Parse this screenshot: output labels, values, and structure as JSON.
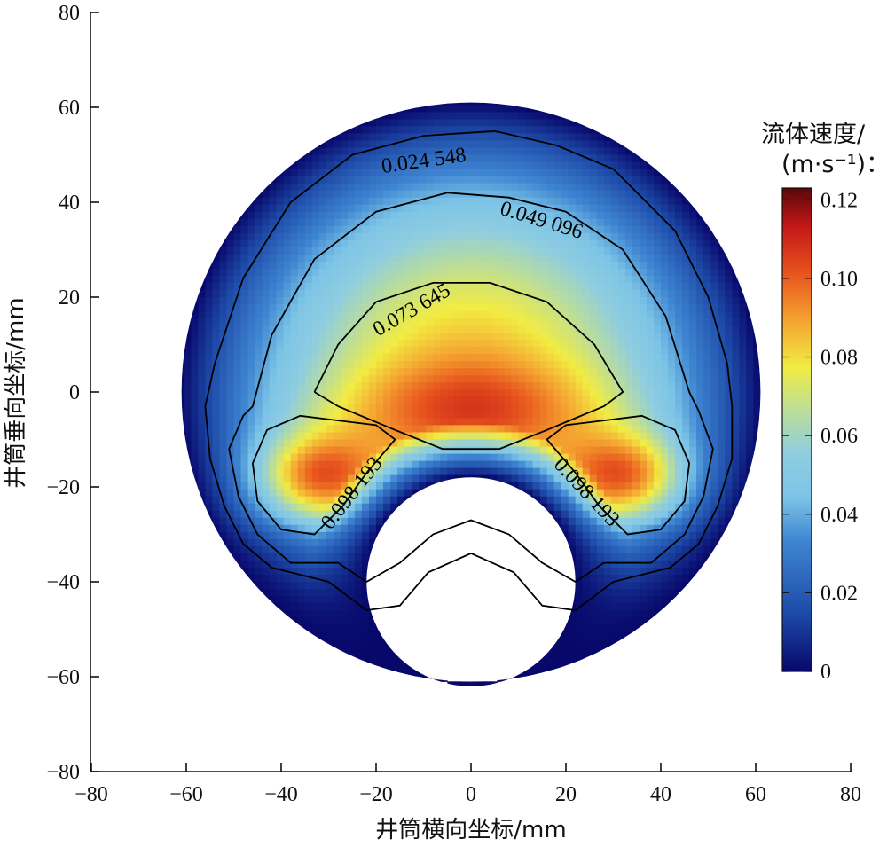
{
  "chart_data": {
    "type": "heatmap",
    "title": "",
    "xlabel": "井筒横向坐标/mm",
    "ylabel": "井筒垂向坐标/mm",
    "xlim": [
      -80,
      80
    ],
    "ylim": [
      -80,
      80
    ],
    "x_ticks": [
      -80,
      -60,
      -40,
      -20,
      0,
      20,
      40,
      60,
      80
    ],
    "y_ticks": [
      -80,
      -60,
      -40,
      -20,
      0,
      20,
      40,
      60,
      80
    ],
    "x_tick_labels": [
      "−80",
      "−60",
      "−40",
      "−20",
      "0",
      "20",
      "40",
      "60",
      "80"
    ],
    "y_tick_labels": [
      "−80",
      "−60",
      "−40",
      "−20",
      "0",
      "20",
      "40",
      "60",
      "80"
    ],
    "wellbore": {
      "center": [
        0,
        0
      ],
      "radius": 61
    },
    "drill_pipe": {
      "center": [
        0,
        -40
      ],
      "radius": 22
    },
    "colorbar": {
      "title_line1": "流体速度/",
      "title_line2": "(m·s⁻¹)：",
      "range": [
        0,
        0.123
      ],
      "ticks": [
        0,
        0.02,
        0.04,
        0.06,
        0.08,
        0.1,
        0.12
      ],
      "tick_labels": [
        "0",
        "0.02",
        "0.04",
        "0.06",
        "0.08",
        "0.10",
        "0.12"
      ],
      "colormap": [
        "#08086b",
        "#1d4aa8",
        "#4f9ee0",
        "#8fcde0",
        "#c3e08a",
        "#f2ec42",
        "#f4a030",
        "#e8561e",
        "#c51818",
        "#5a0808"
      ]
    },
    "contours": [
      {
        "level": 0.024548,
        "label": "0.024 548"
      },
      {
        "level": 0.049096,
        "label": "0.049 096"
      },
      {
        "level": 0.073645,
        "label": "0.073 645"
      },
      {
        "level": 0.098193,
        "label": "0.098 193"
      }
    ],
    "peak_velocity": 0.12,
    "peak_locations": [
      [
        -33,
        -18
      ],
      [
        33,
        -18
      ]
    ]
  }
}
